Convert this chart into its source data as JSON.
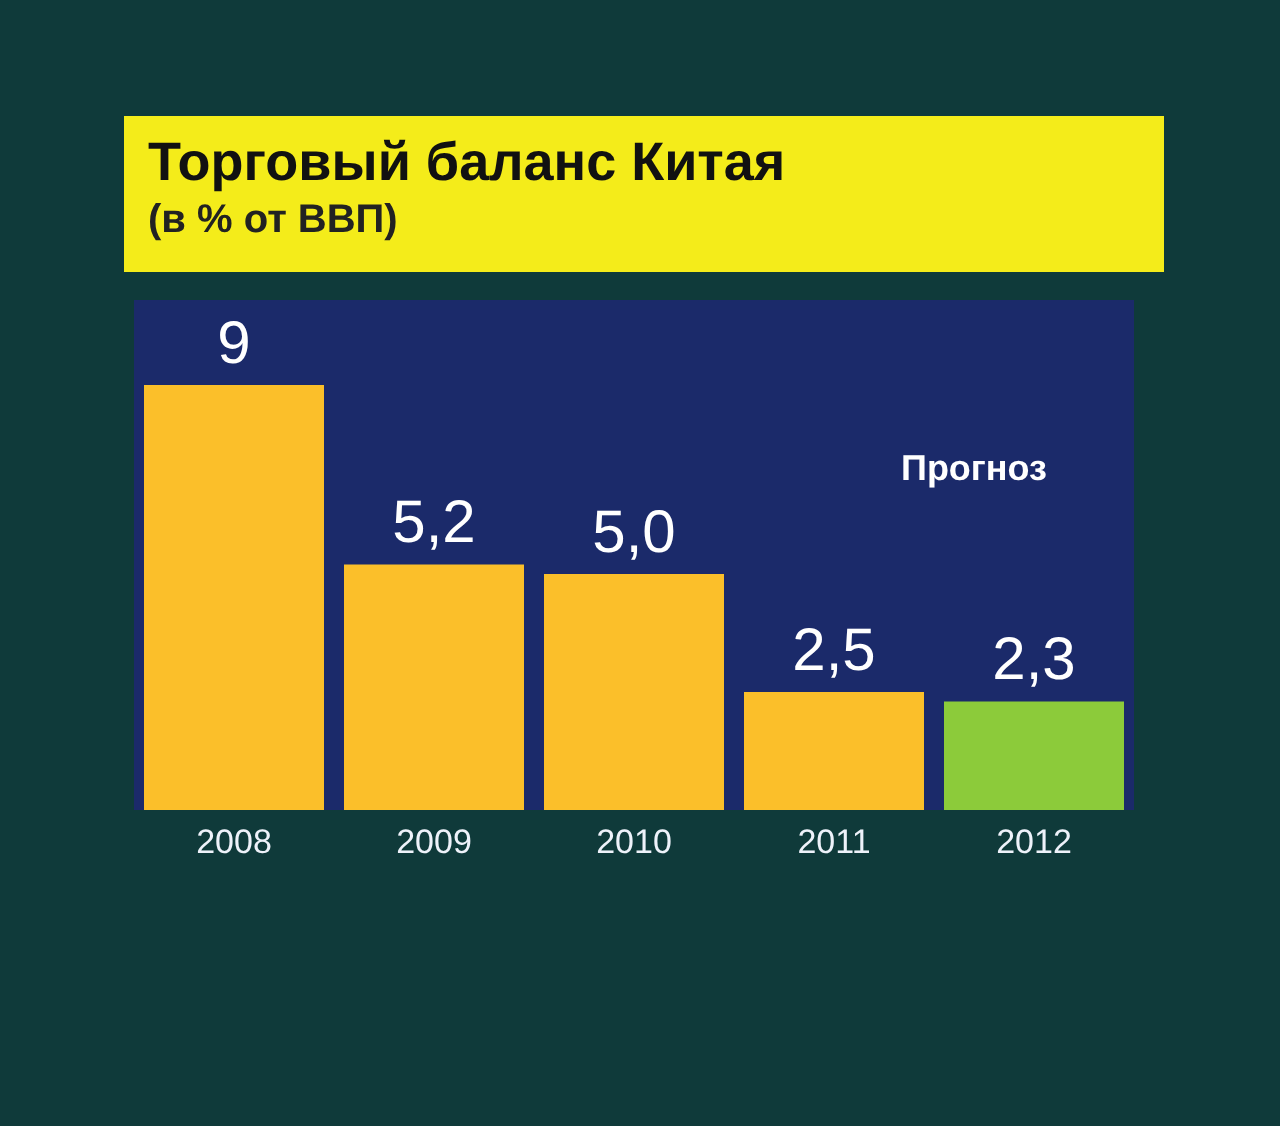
{
  "chart_data": {
    "type": "bar",
    "title": "Торговый баланс Китая",
    "subtitle": "(в % от ВВП)",
    "categories": [
      "2008",
      "2009",
      "2010",
      "2011",
      "2012"
    ],
    "values": [
      9,
      5.2,
      5.0,
      2.5,
      2.3
    ],
    "colors": [
      "#fbbf2a",
      "#fbbf2a",
      "#fbbf2a",
      "#fbbf2a",
      "#8ccb3a"
    ],
    "value_labels": [
      "9",
      "5,2",
      "5,0",
      "2,5",
      "2,3"
    ],
    "annotations": [
      "Прогноз"
    ]
  }
}
